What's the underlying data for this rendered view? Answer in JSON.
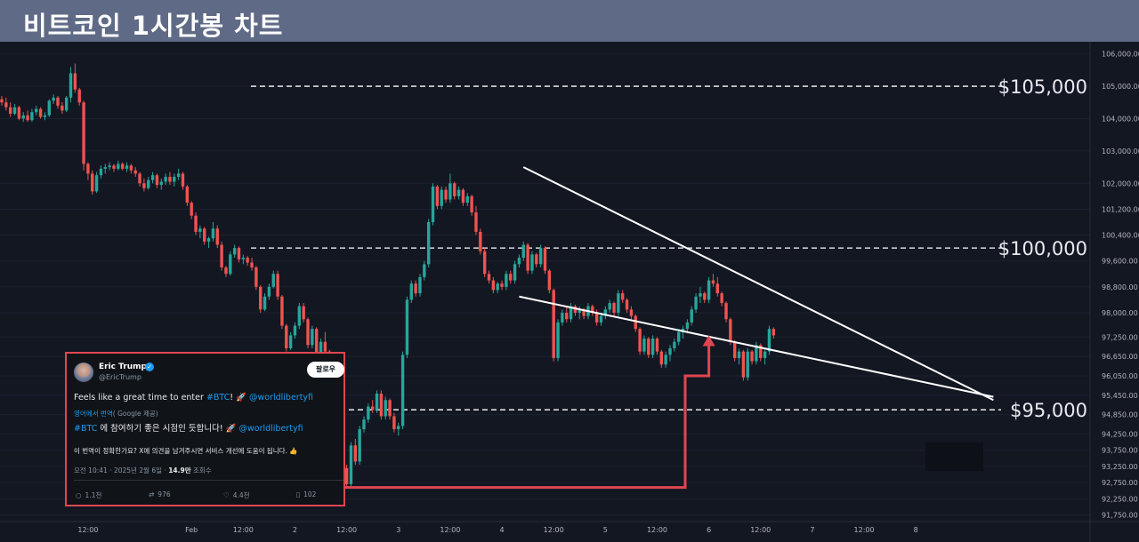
{
  "header": {
    "title": "비트코인 1시간봉 차트"
  },
  "colors": {
    "up": "#26a69a",
    "down": "#ef5350",
    "background": "#131722",
    "header": "#5f6b86",
    "trendline": "#ffffff",
    "arrow": "#e04650",
    "level_line": "#ffffff"
  },
  "chart_data": {
    "type": "candlestick",
    "yaxis": {
      "ticks": [
        91750,
        92250,
        92750,
        93250,
        93750,
        94250,
        94850,
        95450,
        96050,
        96650,
        97250,
        98000,
        98800,
        99600,
        100400,
        101200,
        102000,
        103000,
        104000,
        105000,
        106000
      ],
      "tick_labels": [
        "91,750.00",
        "92,250.00",
        "92,750.00",
        "93,250.00",
        "93,750.00",
        "94,250.00",
        "94,850.00",
        "95,450.00",
        "96,050.00",
        "96,650.00",
        "97,250.00",
        "98,000.00",
        "98,800.00",
        "99,600.00",
        "100,400.00",
        "101,200.00",
        "102,000.00",
        "103,000.00",
        "104,000.00",
        "105,000.00",
        "106,000.00"
      ],
      "ylim": [
        91600,
        106100
      ]
    },
    "xaxis": {
      "tick_labels": [
        "12:00",
        "Feb",
        "12:00",
        "2",
        "12:00",
        "3",
        "12:00",
        "4",
        "12:00",
        "5",
        "12:00",
        "6",
        "12:00",
        "7",
        "12:00",
        "8"
      ],
      "xlim_hours": [
        -44,
        208
      ]
    },
    "levels": [
      {
        "value": 105000,
        "label": "$105,000"
      },
      {
        "value": 100000,
        "label": "$100,000"
      },
      {
        "value": 95000,
        "label": "$95,000"
      }
    ],
    "trendlines": [
      {
        "name": "upper",
        "points": [
          [
            77,
            102500
          ],
          [
            186,
            95300
          ]
        ]
      },
      {
        "name": "lower",
        "points": [
          [
            76,
            98500
          ],
          [
            186,
            95400
          ]
        ]
      }
    ],
    "candles": [
      [
        -44,
        104600,
        104700,
        104400,
        104500
      ],
      [
        -43,
        104500,
        104650,
        104250,
        104350
      ],
      [
        -42,
        104350,
        104500,
        104050,
        104150
      ],
      [
        -41,
        104150,
        104450,
        104100,
        104350
      ],
      [
        -40,
        104350,
        104400,
        103950,
        104000
      ],
      [
        -39,
        104000,
        104200,
        103900,
        104100
      ],
      [
        -38,
        104100,
        104250,
        103900,
        103950
      ],
      [
        -37,
        103950,
        104300,
        103900,
        104200
      ],
      [
        -36,
        104200,
        104400,
        104100,
        104300
      ],
      [
        -35,
        104300,
        104350,
        104000,
        104050
      ],
      [
        -34,
        104050,
        104200,
        103950,
        104100
      ],
      [
        -33,
        104100,
        104600,
        104050,
        104550
      ],
      [
        -32,
        104550,
        104750,
        104450,
        104650
      ],
      [
        -31,
        104650,
        104700,
        104300,
        104400
      ],
      [
        -30,
        104400,
        104500,
        104150,
        104250
      ],
      [
        -29,
        104250,
        104700,
        104200,
        104650
      ],
      [
        -28,
        104650,
        105600,
        104500,
        105400
      ],
      [
        -27,
        105400,
        105700,
        104800,
        104900
      ],
      [
        -26,
        104900,
        104950,
        104400,
        104500
      ],
      [
        -25,
        104500,
        104550,
        102400,
        102600
      ],
      [
        -24,
        102600,
        102650,
        102100,
        102300
      ],
      [
        -23,
        102300,
        102400,
        101650,
        101750
      ],
      [
        -22,
        101750,
        102350,
        101700,
        102250
      ],
      [
        -21,
        102250,
        102550,
        102150,
        102450
      ],
      [
        -20,
        102450,
        102600,
        102300,
        102500
      ],
      [
        -19,
        102500,
        102650,
        102400,
        102550
      ],
      [
        -18,
        102550,
        102600,
        102350,
        102450
      ],
      [
        -17,
        102450,
        102700,
        102400,
        102600
      ],
      [
        -16,
        102600,
        102650,
        102400,
        102450
      ],
      [
        -15,
        102450,
        102650,
        102350,
        102550
      ],
      [
        -14,
        102550,
        102600,
        102300,
        102400
      ],
      [
        -13,
        102400,
        102500,
        102200,
        102300
      ],
      [
        -12,
        102300,
        102350,
        101900,
        102000
      ],
      [
        -11,
        102000,
        102150,
        101750,
        101850
      ],
      [
        -10,
        101850,
        102200,
        101800,
        102100
      ],
      [
        -9,
        102100,
        102350,
        102000,
        102250
      ],
      [
        -8,
        102250,
        102300,
        101850,
        101950
      ],
      [
        -7,
        101950,
        102150,
        101800,
        102050
      ],
      [
        -6,
        102050,
        102300,
        101950,
        102200
      ],
      [
        -5,
        102200,
        102350,
        101950,
        102050
      ],
      [
        -4,
        102050,
        102300,
        101900,
        102200
      ],
      [
        -3,
        102200,
        102450,
        102100,
        102300
      ],
      [
        -2,
        102300,
        102350,
        101800,
        101900
      ],
      [
        -1,
        101900,
        101950,
        101300,
        101400
      ],
      [
        0,
        101400,
        101450,
        100900,
        101000
      ],
      [
        1,
        101000,
        101100,
        100400,
        100500
      ],
      [
        2,
        100500,
        100700,
        100300,
        100600
      ],
      [
        3,
        100600,
        100650,
        100100,
        100200
      ],
      [
        4,
        100200,
        100350,
        100000,
        100300
      ],
      [
        5,
        100300,
        100800,
        100200,
        100600
      ],
      [
        6,
        100600,
        100700,
        100000,
        100100
      ],
      [
        7,
        100100,
        100200,
        99300,
        99400
      ],
      [
        8,
        99400,
        99450,
        99100,
        99200
      ],
      [
        9,
        99200,
        99900,
        99150,
        99800
      ],
      [
        10,
        99800,
        100100,
        99700,
        100000
      ],
      [
        11,
        100000,
        100050,
        99550,
        99650
      ],
      [
        12,
        99650,
        99800,
        99500,
        99700
      ],
      [
        13,
        99700,
        99750,
        99450,
        99550
      ],
      [
        14,
        99550,
        99700,
        99300,
        99400
      ],
      [
        15,
        99400,
        99450,
        98700,
        98800
      ],
      [
        16,
        98800,
        98850,
        98000,
        98100
      ],
      [
        17,
        98100,
        98600,
        98050,
        98500
      ],
      [
        18,
        98500,
        98900,
        98400,
        98800
      ],
      [
        19,
        98800,
        99300,
        98750,
        99200
      ],
      [
        20,
        99200,
        99300,
        98400,
        98500
      ],
      [
        21,
        98500,
        98550,
        97500,
        97600
      ],
      [
        22,
        97600,
        97650,
        96800,
        96900
      ],
      [
        23,
        96900,
        97400,
        96850,
        97300
      ],
      [
        24,
        97300,
        97700,
        97200,
        97600
      ],
      [
        25,
        97600,
        98300,
        97500,
        98200
      ],
      [
        26,
        98200,
        98300,
        97700,
        97800
      ],
      [
        27,
        97800,
        97850,
        96900,
        97000
      ],
      [
        28,
        97000,
        97600,
        96900,
        97500
      ],
      [
        29,
        97500,
        97550,
        96400,
        96500
      ],
      [
        30,
        96500,
        97200,
        96300,
        97100
      ],
      [
        31,
        97100,
        97400,
        96700,
        96800
      ],
      [
        32,
        96800,
        96850,
        95700,
        95800
      ],
      [
        33,
        95800,
        95900,
        93000,
        93200
      ],
      [
        34,
        93200,
        94300,
        92300,
        94200
      ],
      [
        35,
        94200,
        94250,
        93100,
        93200
      ],
      [
        36,
        93200,
        93300,
        92600,
        92700
      ],
      [
        37,
        92700,
        94000,
        92600,
        93900
      ],
      [
        38,
        93900,
        94100,
        93300,
        93400
      ],
      [
        39,
        93400,
        94500,
        93300,
        94400
      ],
      [
        40,
        94400,
        94800,
        94300,
        94700
      ],
      [
        41,
        94700,
        95200,
        94600,
        95100
      ],
      [
        42,
        95100,
        95300,
        94900,
        95000
      ],
      [
        43,
        95000,
        95600,
        94900,
        95500
      ],
      [
        44,
        95500,
        95600,
        94700,
        94800
      ],
      [
        45,
        94800,
        95400,
        94700,
        95300
      ],
      [
        46,
        95300,
        95350,
        94700,
        94800
      ],
      [
        47,
        94800,
        94900,
        94300,
        94400
      ],
      [
        48,
        94400,
        94600,
        94200,
        94500
      ],
      [
        49,
        94500,
        96800,
        94400,
        96700
      ],
      [
        50,
        96700,
        98500,
        96600,
        98400
      ],
      [
        51,
        98400,
        99000,
        98300,
        98900
      ],
      [
        52,
        98900,
        99000,
        98500,
        98600
      ],
      [
        53,
        98600,
        99200,
        98500,
        99100
      ],
      [
        54,
        99100,
        99600,
        99000,
        99500
      ],
      [
        55,
        99500,
        100900,
        99400,
        100800
      ],
      [
        56,
        100800,
        102000,
        100700,
        101900
      ],
      [
        57,
        101900,
        101950,
        101200,
        101300
      ],
      [
        58,
        101300,
        101900,
        101200,
        101800
      ],
      [
        59,
        101800,
        101900,
        101400,
        101500
      ],
      [
        60,
        101500,
        102300,
        101400,
        102000
      ],
      [
        61,
        102000,
        102050,
        101500,
        101600
      ],
      [
        62,
        101600,
        101900,
        101500,
        101800
      ],
      [
        63,
        101800,
        101850,
        101300,
        101400
      ],
      [
        64,
        101400,
        101700,
        101300,
        101600
      ],
      [
        65,
        101600,
        101650,
        101000,
        101100
      ],
      [
        66,
        101100,
        101300,
        100400,
        100500
      ],
      [
        67,
        100500,
        100600,
        99800,
        99900
      ],
      [
        68,
        99900,
        100000,
        99100,
        99200
      ],
      [
        69,
        99200,
        99300,
        98900,
        99000
      ],
      [
        70,
        99000,
        99100,
        98600,
        98700
      ],
      [
        71,
        98700,
        98950,
        98600,
        98900
      ],
      [
        72,
        98900,
        99000,
        98700,
        98800
      ],
      [
        73,
        98800,
        99300,
        98700,
        99200
      ],
      [
        74,
        99200,
        99300,
        98900,
        99000
      ],
      [
        75,
        99000,
        99600,
        98900,
        99500
      ],
      [
        76,
        99500,
        99800,
        99400,
        99700
      ],
      [
        77,
        99700,
        100200,
        99600,
        100100
      ],
      [
        78,
        100100,
        100150,
        99200,
        99300
      ],
      [
        79,
        99300,
        99900,
        99200,
        99800
      ],
      [
        80,
        99800,
        99850,
        99400,
        99500
      ],
      [
        81,
        99500,
        100100,
        99400,
        100000
      ],
      [
        82,
        100000,
        100050,
        99200,
        99300
      ],
      [
        83,
        99300,
        99350,
        98600,
        98700
      ],
      [
        84,
        98700,
        98750,
        96500,
        96600
      ],
      [
        85,
        96600,
        97800,
        96500,
        97700
      ],
      [
        86,
        97700,
        98100,
        97600,
        98000
      ],
      [
        87,
        98000,
        98200,
        97700,
        97800
      ],
      [
        88,
        97800,
        98300,
        97700,
        98200
      ],
      [
        89,
        98200,
        98250,
        97900,
        98000
      ],
      [
        90,
        98000,
        98200,
        97800,
        98100
      ],
      [
        91,
        98100,
        98150,
        97800,
        97900
      ],
      [
        92,
        97900,
        98300,
        97800,
        98200
      ],
      [
        93,
        98200,
        98250,
        97900,
        98000
      ],
      [
        94,
        98000,
        98100,
        97600,
        97700
      ],
      [
        95,
        97700,
        98000,
        97600,
        97900
      ],
      [
        96,
        97900,
        98200,
        97800,
        98100
      ],
      [
        97,
        98100,
        98400,
        98000,
        98300
      ],
      [
        98,
        98300,
        98350,
        97900,
        98000
      ],
      [
        99,
        98000,
        98700,
        97900,
        98600
      ],
      [
        100,
        98600,
        98700,
        98300,
        98400
      ],
      [
        101,
        98400,
        98450,
        98000,
        98100
      ],
      [
        102,
        98100,
        98200,
        97800,
        97900
      ],
      [
        103,
        97900,
        97950,
        97400,
        97500
      ],
      [
        104,
        97500,
        97550,
        96700,
        96800
      ],
      [
        105,
        96800,
        97300,
        96700,
        97200
      ],
      [
        106,
        97200,
        97250,
        96600,
        96700
      ],
      [
        107,
        96700,
        97300,
        96600,
        97200
      ],
      [
        108,
        97200,
        97250,
        96700,
        96800
      ],
      [
        109,
        96800,
        96850,
        96300,
        96400
      ],
      [
        110,
        96400,
        96800,
        96300,
        96700
      ],
      [
        111,
        96700,
        97000,
        96500,
        96900
      ],
      [
        112,
        96900,
        97200,
        96800,
        97100
      ],
      [
        113,
        97100,
        97500,
        97000,
        97400
      ],
      [
        114,
        97400,
        97600,
        97200,
        97500
      ],
      [
        115,
        97500,
        97800,
        97400,
        97700
      ],
      [
        116,
        97700,
        98200,
        97600,
        98100
      ],
      [
        117,
        98100,
        98600,
        98000,
        98500
      ],
      [
        118,
        98500,
        98800,
        98300,
        98600
      ],
      [
        119,
        98600,
        98650,
        98300,
        98400
      ],
      [
        120,
        98400,
        99100,
        98300,
        99000
      ],
      [
        121,
        99000,
        99200,
        98800,
        98900
      ],
      [
        122,
        98900,
        99100,
        98500,
        98600
      ],
      [
        123,
        98600,
        98650,
        98200,
        98300
      ],
      [
        124,
        98300,
        98350,
        97700,
        97800
      ],
      [
        125,
        97800,
        97850,
        97000,
        97100
      ],
      [
        126,
        97100,
        97150,
        96500,
        96600
      ],
      [
        127,
        96600,
        96900,
        96400,
        96800
      ],
      [
        128,
        96800,
        96850,
        95900,
        96000
      ],
      [
        129,
        96000,
        96900,
        95900,
        96800
      ],
      [
        130,
        96800,
        96850,
        96400,
        96500
      ],
      [
        131,
        96500,
        97100,
        96400,
        97000
      ],
      [
        132,
        97000,
        97050,
        96500,
        96600
      ],
      [
        133,
        96600,
        96900,
        96400,
        96800
      ],
      [
        134,
        96800,
        97600,
        96700,
        97500
      ],
      [
        135,
        97500,
        97550,
        97200,
        97300
      ]
    ]
  },
  "tweet": {
    "name": "Eric Trump",
    "handle": "@EricTrump",
    "follow_label": "팔로우",
    "text_en_prefix": "Feels like a great time to enter ",
    "text_en_tag": "#BTC",
    "text_en_suffix": "! 🚀 ",
    "text_en_mention": "@worldlibertyfi",
    "translated_prefix": "영어에서 번역",
    "translated_suffix": "( Google 제공)",
    "text_ko_tag": "#BTC",
    "text_ko_body": " 에 참여하기 좋은 시점인 듯합니다! 🚀 ",
    "text_ko_mention": "@worldlibertyfi",
    "question": "이 번역이 정확한가요? X에 의견을 남겨주시면 서비스 개선에 도움이 됩니다. 👍",
    "meta_prefix": "오전 10:41 · 2025년 2월 6일 · ",
    "meta_views": "14.9만",
    "meta_suffix": " 조회수",
    "replies": "1.1천",
    "reposts": "976",
    "likes": "4.4천",
    "bookmarks": "102"
  }
}
